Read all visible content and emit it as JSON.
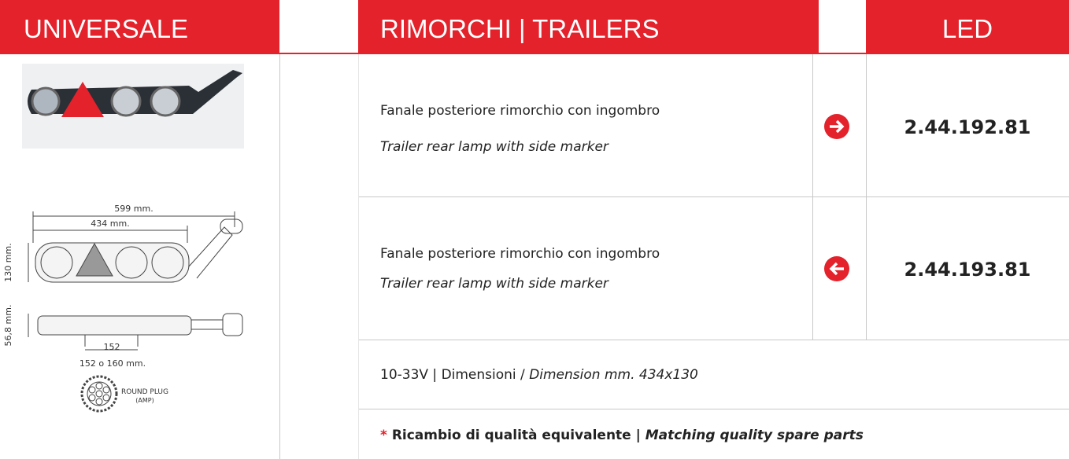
{
  "header": {
    "category": "UNIVERSALE",
    "section": "RIMORCHI | TRAILERS",
    "technology": "LED"
  },
  "drawing": {
    "width_total": "599 mm.",
    "width_inner": "434 mm.",
    "height": "130 mm.",
    "depth": "56,8 mm.",
    "pitch": "152",
    "pitch_range": "152 o 160 mm.",
    "plug": "ROUND PLUG",
    "plug_type": "(AMP)"
  },
  "products": [
    {
      "description_it": "Fanale posteriore rimorchio con ingombro",
      "description_en": "Trailer rear lamp with side marker",
      "code": "2.44.192.81"
    },
    {
      "description_it": "Fanale posteriore rimorchio con ingombro",
      "description_en": "Trailer rear lamp with side marker",
      "code": "2.44.193.81"
    }
  ],
  "specs": {
    "voltage": "10-33V | Dimensioni / ",
    "dimension_en": "Dimension mm. 434x130"
  },
  "footer": {
    "mark": "*",
    "text_it": "Ricambio di qualità equivalente | ",
    "text_en": "Matching quality spare parts"
  }
}
